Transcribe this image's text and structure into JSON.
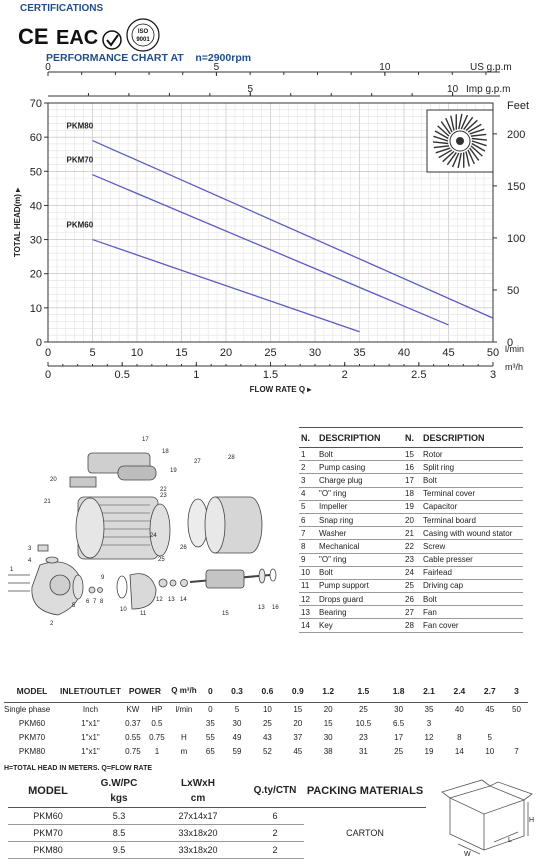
{
  "certifications": {
    "title": "CERTIFICATIONS",
    "marks": [
      "CE",
      "EAC",
      "ISO 9001"
    ]
  },
  "performance_chart": {
    "title": "PERFORMANCE CHART AT    n=2900rpm",
    "top_axis_us": {
      "label": "US g.p.m",
      "ticks": [
        "0",
        "5",
        "10"
      ]
    },
    "top_axis_imp": {
      "label": "Imp g.p.m",
      "ticks": [
        "5",
        "10"
      ]
    },
    "left_axis": {
      "label": "TOTAL HEAD(m) ▸",
      "ticks": [
        "0",
        "10",
        "20",
        "30",
        "40",
        "50",
        "60",
        "70"
      ]
    },
    "right_axis": {
      "label": "Feet",
      "ticks": [
        "0",
        "50",
        "100",
        "150",
        "200"
      ]
    },
    "bottom_axis_lmin": {
      "label": "l/min",
      "ticks": [
        "0",
        "5",
        "10",
        "15",
        "20",
        "25",
        "30",
        "35",
        "40",
        "45",
        "50"
      ]
    },
    "bottom_axis_m3h": {
      "label": "m³/h",
      "ticks": [
        "0",
        "0.5",
        "1",
        "1.5",
        "2",
        "2.5",
        "3"
      ]
    },
    "xlabel": "FLOW RATE Q ▸"
  },
  "chart_data": {
    "type": "line",
    "title": "PERFORMANCE CHART AT n=2900rpm",
    "xlabel": "FLOW RATE Q",
    "ylabel": "TOTAL HEAD(m)",
    "xlim": [
      0,
      50
    ],
    "ylim": [
      0,
      70
    ],
    "grid": true,
    "series": [
      {
        "name": "PKM80",
        "x": [
          5,
          50
        ],
        "y": [
          59,
          7
        ]
      },
      {
        "name": "PKM70",
        "x": [
          5,
          45
        ],
        "y": [
          49,
          5
        ]
      },
      {
        "name": "PKM60",
        "x": [
          5,
          35
        ],
        "y": [
          30,
          3
        ]
      }
    ]
  },
  "parts": {
    "headers": [
      "N.",
      "DESCRIPTION",
      "N.",
      "DESCRIPTION"
    ],
    "rows": [
      [
        "1",
        "Bolt",
        "15",
        "Rotor"
      ],
      [
        "2",
        "Pump casing",
        "16",
        "Split ring"
      ],
      [
        "3",
        "Charge plug",
        "17",
        "Bolt"
      ],
      [
        "4",
        "\"O\" ring",
        "18",
        "Terminal cover"
      ],
      [
        "5",
        "Impeller",
        "19",
        "Capacitor"
      ],
      [
        "6",
        "Snap ring",
        "20",
        "Terminal board"
      ],
      [
        "7",
        "Washer",
        "21",
        "Casing with wound stator"
      ],
      [
        "8",
        "Mechanical",
        "22",
        "Screw"
      ],
      [
        "9",
        "\"O\" ring",
        "23",
        "Cable presser"
      ],
      [
        "10",
        "Bolt",
        "24",
        "Fairlead"
      ],
      [
        "11",
        "Pump support",
        "25",
        "Driving cap"
      ],
      [
        "12",
        "Drops guard",
        "26",
        "Bolt"
      ],
      [
        "13",
        "Bearing",
        "27",
        "Fan"
      ],
      [
        "14",
        "Key",
        "28",
        "Fan cover"
      ]
    ]
  },
  "perf_table": {
    "headers": [
      "MODEL",
      "INLET/OUTLET",
      "POWER",
      "Q m³/h",
      "0",
      "0.3",
      "0.6",
      "0.9",
      "1.2",
      "1.5",
      "1.8",
      "2.1",
      "2.4",
      "2.7",
      "3"
    ],
    "subheader": [
      "Single phase",
      "Inch",
      "KW",
      "HP",
      "l/min",
      "0",
      "5",
      "10",
      "15",
      "20",
      "25",
      "30",
      "35",
      "40",
      "45",
      "50"
    ],
    "h_label": "H",
    "m_label": "m",
    "rows": [
      {
        "model": "PKM60",
        "inch": "1\"x1\"",
        "kw": "0.37",
        "hp": "0.5",
        "values": [
          "35",
          "30",
          "25",
          "20",
          "15",
          "10.5",
          "6.5",
          "3",
          "",
          "",
          ""
        ]
      },
      {
        "model": "PKM70",
        "inch": "1\"x1\"",
        "kw": "0.55",
        "hp": "0.75",
        "values": [
          "55",
          "49",
          "43",
          "37",
          "30",
          "23",
          "17",
          "12",
          "8",
          "5",
          ""
        ]
      },
      {
        "model": "PKM80",
        "inch": "1\"x1\"",
        "kw": "0.75",
        "hp": "1",
        "values": [
          "65",
          "59",
          "52",
          "45",
          "38",
          "31",
          "25",
          "19",
          "14",
          "10",
          "7"
        ]
      }
    ],
    "note": "H=TOTAL HEAD IN METERS. Q=FLOW RATE"
  },
  "pack_table": {
    "headers": [
      "MODEL",
      "G.W/PC",
      "LxWxH",
      "Q.ty/CTN",
      "PACKING MATERIALS"
    ],
    "units": [
      "kgs",
      "cm"
    ],
    "rows": [
      [
        "PKM60",
        "5.3",
        "27x14x17",
        "6"
      ],
      [
        "PKM70",
        "8.5",
        "33x18x20",
        "2"
      ],
      [
        "PKM80",
        "9.5",
        "33x18x20",
        "2"
      ]
    ],
    "material": "CARTON",
    "box_labels": [
      "H",
      "W",
      "L"
    ]
  },
  "diagram_labels": [
    "17",
    "18",
    "19",
    "20",
    "21",
    "22",
    "23",
    "27",
    "28",
    "24",
    "25",
    "26",
    "3",
    "4",
    "1",
    "9",
    "5",
    "6",
    "7",
    "8",
    "10",
    "11",
    "12",
    "13",
    "14",
    "15",
    "2",
    "13",
    "16"
  ]
}
